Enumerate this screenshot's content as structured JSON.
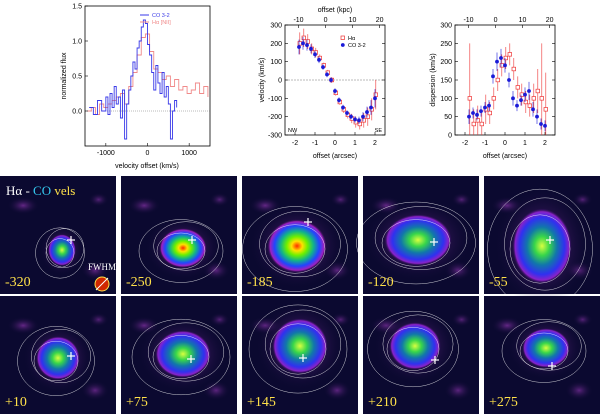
{
  "figure": {
    "spectrum": {
      "ylabel": "normalized flux",
      "xlabel": "velocity offset (km/s)",
      "xlim": [
        -1500,
        1500
      ],
      "ylim": [
        -0.5,
        1.5
      ],
      "xticks": [
        -1000,
        0,
        1000
      ],
      "yticks": [
        0.0,
        0.5,
        1.0,
        1.5
      ],
      "ytick_labels": [
        "0.0",
        "0.5",
        "1.0",
        "1.5"
      ],
      "legend": [
        "CO 3-2",
        "Hα [NII]"
      ],
      "colors": {
        "co": "#3a3ae8",
        "ha": "#f08a8a"
      },
      "series": {
        "co": {
          "x": [
            -1400,
            -1300,
            -1200,
            -1100,
            -1000,
            -950,
            -900,
            -850,
            -800,
            -750,
            -700,
            -650,
            -600,
            -550,
            -500,
            -450,
            -400,
            -350,
            -300,
            -250,
            -200,
            -150,
            -100,
            -50,
            0,
            50,
            100,
            150,
            200,
            250,
            300,
            350,
            400,
            450,
            500,
            550,
            600,
            650,
            700
          ],
          "y": [
            0.05,
            -0.05,
            0.15,
            0.0,
            0.2,
            -0.05,
            0.25,
            0.05,
            0.35,
            0.1,
            0.2,
            -0.1,
            0.3,
            -0.4,
            0.1,
            0.3,
            0.5,
            0.7,
            0.6,
            0.9,
            1.0,
            1.2,
            1.3,
            1.25,
            0.95,
            0.8,
            0.55,
            0.3,
            0.65,
            0.4,
            0.25,
            0.55,
            0.2,
            0.35,
            0.1,
            -0.4,
            0.0,
            0.15,
            0.05
          ]
        },
        "ha": {
          "x": [
            -1450,
            -1350,
            -1250,
            -1150,
            -1050,
            -950,
            -850,
            -750,
            -650,
            -550,
            -450,
            -350,
            -250,
            -150,
            -50,
            50,
            150,
            250,
            350,
            450,
            550,
            650,
            750,
            850,
            950,
            1050,
            1150,
            1250,
            1350,
            1450
          ],
          "y": [
            0.0,
            0.05,
            -0.05,
            0.1,
            0.05,
            0.1,
            0.15,
            0.2,
            0.25,
            0.1,
            0.35,
            0.55,
            0.8,
            1.05,
            1.1,
            0.85,
            0.6,
            0.55,
            0.45,
            0.5,
            0.35,
            0.45,
            0.3,
            0.35,
            0.25,
            0.3,
            0.4,
            0.25,
            0.35,
            0.2
          ]
        }
      }
    },
    "velocity": {
      "ylabel": "velocity (km/s)",
      "xlabel": "offset (arcsec)",
      "top_label": "offset (kpc)",
      "xlim": [
        -2.5,
        2.5
      ],
      "ylim": [
        -300,
        300
      ],
      "xticks": [
        -2,
        -1,
        0,
        1,
        2
      ],
      "yticks": [
        -300,
        -200,
        -100,
        0,
        100,
        200,
        300
      ],
      "top_ticks": [
        -10,
        0,
        10,
        20
      ],
      "top_tick_labels": [
        "-10",
        "0",
        "10",
        "20"
      ],
      "legend": [
        "Hα",
        "CO 3-2"
      ],
      "corner_labels": [
        "NW",
        "SE"
      ],
      "co": {
        "x": [
          -1.8,
          -1.6,
          -1.4,
          -1.2,
          -1.0,
          -0.8,
          -0.6,
          -0.4,
          -0.2,
          0.0,
          0.2,
          0.4,
          0.6,
          0.8,
          1.0,
          1.2,
          1.4,
          1.6,
          1.8,
          2.0
        ],
        "y": [
          180,
          200,
          190,
          170,
          140,
          110,
          70,
          30,
          0,
          -60,
          -110,
          -150,
          -180,
          -200,
          -215,
          -220,
          -200,
          -175,
          -150,
          -100
        ],
        "err": [
          40,
          35,
          30,
          25,
          20,
          18,
          15,
          15,
          15,
          15,
          15,
          15,
          15,
          15,
          18,
          20,
          25,
          30,
          40,
          50
        ]
      },
      "ha": {
        "x": [
          -1.8,
          -1.6,
          -1.4,
          -1.2,
          -1.0,
          -0.8,
          -0.6,
          -0.4,
          -0.2,
          0.0,
          0.2,
          0.4,
          0.6,
          0.8,
          1.0,
          1.2,
          1.4,
          1.6,
          1.8,
          2.0
        ],
        "y": [
          200,
          230,
          210,
          170,
          150,
          120,
          80,
          40,
          0,
          -70,
          -120,
          -160,
          -190,
          -210,
          -230,
          -240,
          -220,
          -200,
          -160,
          -80
        ],
        "err": [
          60,
          50,
          40,
          30,
          25,
          20,
          15,
          15,
          15,
          15,
          15,
          20,
          20,
          25,
          30,
          30,
          40,
          50,
          60,
          80
        ]
      }
    },
    "dispersion": {
      "ylabel": "dispersion (km/s)",
      "xlabel": "offset (arcsec)",
      "xlim": [
        -2.5,
        2.5
      ],
      "ylim": [
        0,
        300
      ],
      "xticks": [
        -2,
        -1,
        0,
        1,
        2
      ],
      "yticks": [
        0,
        50,
        100,
        150,
        200,
        250,
        300
      ],
      "top_ticks": [
        -10,
        0,
        10,
        20
      ],
      "top_tick_labels": [
        "-10",
        "0",
        "10",
        "20"
      ],
      "co": {
        "x": [
          -1.8,
          -1.6,
          -1.4,
          -1.2,
          -1.0,
          -0.8,
          -0.6,
          -0.4,
          -0.2,
          0.0,
          0.2,
          0.4,
          0.6,
          0.8,
          1.0,
          1.2,
          1.4,
          1.6,
          1.8,
          2.0
        ],
        "y": [
          50,
          60,
          55,
          65,
          75,
          80,
          160,
          200,
          210,
          190,
          150,
          100,
          80,
          95,
          110,
          120,
          70,
          50,
          30,
          25
        ],
        "err": [
          20,
          15,
          15,
          15,
          15,
          15,
          20,
          25,
          25,
          20,
          20,
          20,
          15,
          15,
          20,
          25,
          20,
          20,
          15,
          15
        ]
      },
      "ha": {
        "x": [
          -1.8,
          -1.6,
          -1.4,
          -1.2,
          -1.0,
          -0.8,
          -0.6,
          -0.4,
          -0.2,
          0.0,
          0.2,
          0.4,
          0.6,
          0.8,
          1.0,
          1.2,
          1.4,
          1.6,
          1.8,
          2.0
        ],
        "y": [
          100,
          30,
          40,
          30,
          70,
          60,
          100,
          150,
          190,
          210,
          220,
          180,
          130,
          110,
          90,
          80,
          100,
          120,
          100,
          70
        ],
        "err": [
          150,
          40,
          40,
          30,
          40,
          30,
          30,
          30,
          30,
          30,
          30,
          30,
          30,
          30,
          30,
          30,
          40,
          60,
          150,
          100
        ]
      }
    },
    "maps": {
      "header_ha": "Hα",
      "header_sep": " - ",
      "header_co": "CO",
      "header_vels": " vels",
      "fwhm_label": "FWHM",
      "velocities": [
        "-320",
        "-250",
        "-185",
        "-120",
        "-55",
        "+10",
        "+75",
        "+145",
        "+210",
        "+275"
      ]
    }
  }
}
